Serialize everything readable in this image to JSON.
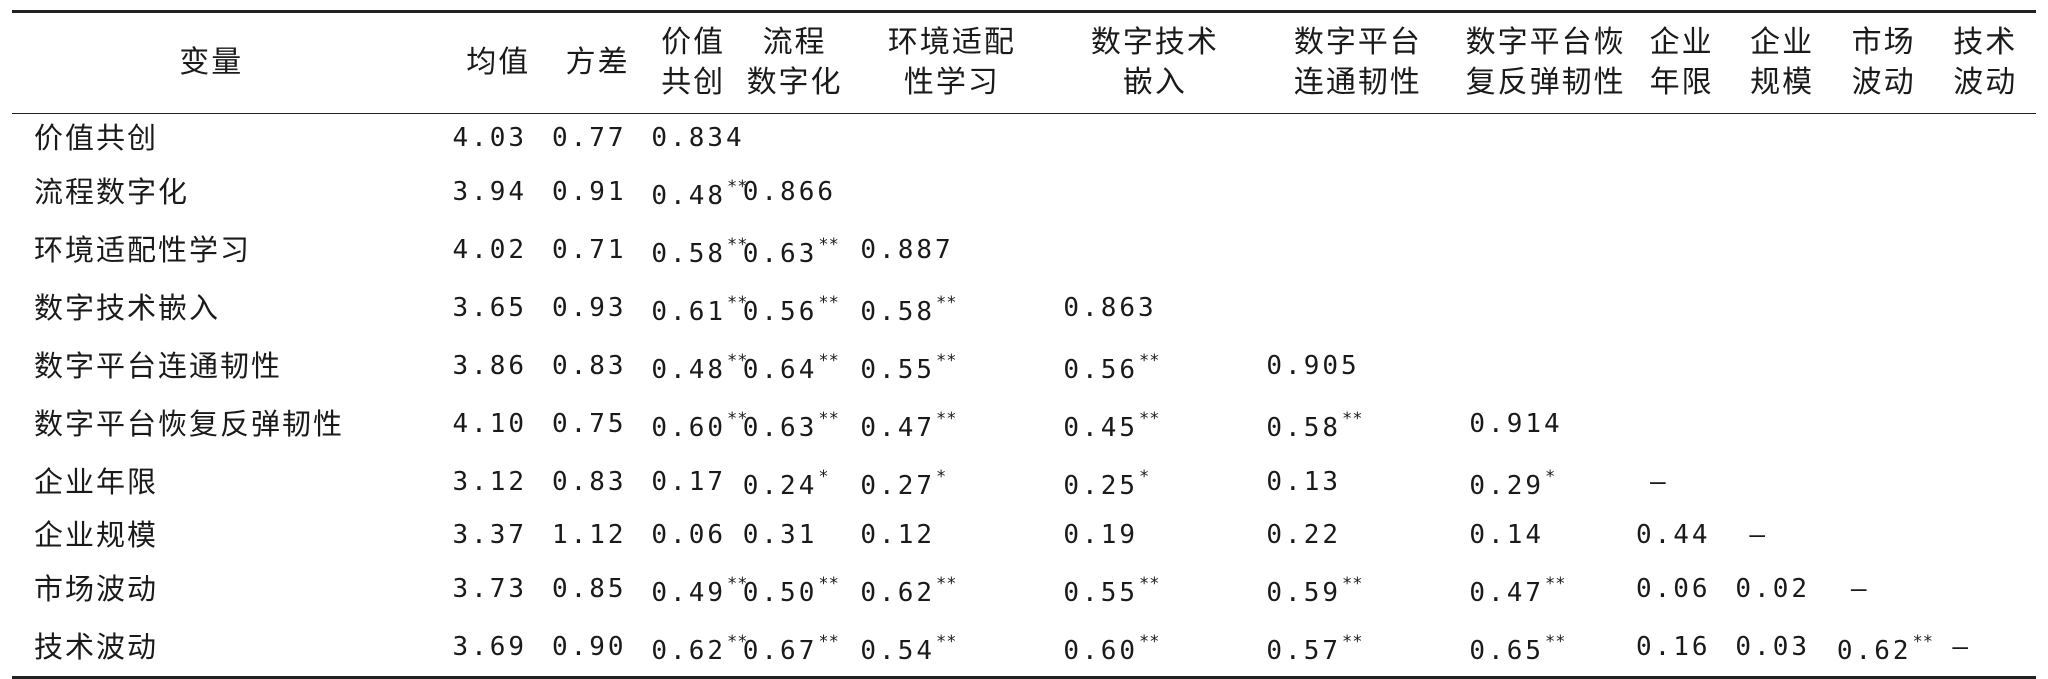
{
  "table": {
    "headers": [
      {
        "lines": [
          "变量"
        ]
      },
      {
        "lines": [
          "均值"
        ]
      },
      {
        "lines": [
          "方差"
        ]
      },
      {
        "lines": [
          "价值",
          "共创"
        ]
      },
      {
        "lines": [
          "流程",
          "数字化"
        ]
      },
      {
        "lines": [
          "环境适配",
          "性学习"
        ]
      },
      {
        "lines": [
          "数字技术",
          "嵌入"
        ]
      },
      {
        "lines": [
          "数字平台",
          "连通韧性"
        ]
      },
      {
        "lines": [
          "数字平台恢",
          "复反弹韧性"
        ]
      },
      {
        "lines": [
          "企业",
          "年限"
        ]
      },
      {
        "lines": [
          "企业",
          "规模"
        ]
      },
      {
        "lines": [
          "市场",
          "波动"
        ]
      },
      {
        "lines": [
          "技术",
          "波动"
        ]
      }
    ],
    "rows": [
      {
        "name": "价值共创",
        "mean": "4.03",
        "variance": "0.77",
        "cells": [
          {
            "v": "0.834",
            "sig": ""
          }
        ]
      },
      {
        "name": "流程数字化",
        "mean": "3.94",
        "variance": "0.91",
        "cells": [
          {
            "v": "0.48",
            "sig": "**"
          },
          {
            "v": "0.866",
            "sig": ""
          }
        ]
      },
      {
        "name": "环境适配性学习",
        "mean": "4.02",
        "variance": "0.71",
        "cells": [
          {
            "v": "0.58",
            "sig": "**"
          },
          {
            "v": "0.63",
            "sig": "**"
          },
          {
            "v": "0.887",
            "sig": ""
          }
        ]
      },
      {
        "name": "数字技术嵌入",
        "mean": "3.65",
        "variance": "0.93",
        "cells": [
          {
            "v": "0.61",
            "sig": "**"
          },
          {
            "v": "0.56",
            "sig": "**"
          },
          {
            "v": "0.58",
            "sig": "**"
          },
          {
            "v": "0.863",
            "sig": ""
          }
        ]
      },
      {
        "name": "数字平台连通韧性",
        "mean": "3.86",
        "variance": "0.83",
        "cells": [
          {
            "v": "0.48",
            "sig": "**"
          },
          {
            "v": "0.64",
            "sig": "**"
          },
          {
            "v": "0.55",
            "sig": "**"
          },
          {
            "v": "0.56",
            "sig": "**"
          },
          {
            "v": "0.905",
            "sig": ""
          }
        ]
      },
      {
        "name": "数字平台恢复反弹韧性",
        "mean": "4.10",
        "variance": "0.75",
        "cells": [
          {
            "v": "0.60",
            "sig": "**"
          },
          {
            "v": "0.63",
            "sig": "**"
          },
          {
            "v": "0.47",
            "sig": "**"
          },
          {
            "v": "0.45",
            "sig": "**"
          },
          {
            "v": "0.58",
            "sig": "**"
          },
          {
            "v": "0.914",
            "sig": ""
          }
        ]
      },
      {
        "name": "企业年限",
        "mean": "3.12",
        "variance": "0.83",
        "cells": [
          {
            "v": "0.17",
            "sig": ""
          },
          {
            "v": "0.24",
            "sig": "*"
          },
          {
            "v": "0.27",
            "sig": "*"
          },
          {
            "v": "0.25",
            "sig": "*"
          },
          {
            "v": "0.13",
            "sig": ""
          },
          {
            "v": "0.29",
            "sig": "*"
          },
          {
            "v": "—",
            "sig": ""
          }
        ]
      },
      {
        "name": "企业规模",
        "mean": "3.37",
        "variance": "1.12",
        "cells": [
          {
            "v": "0.06",
            "sig": ""
          },
          {
            "v": "0.31",
            "sig": ""
          },
          {
            "v": "0.12",
            "sig": ""
          },
          {
            "v": "0.19",
            "sig": ""
          },
          {
            "v": "0.22",
            "sig": ""
          },
          {
            "v": "0.14",
            "sig": ""
          },
          {
            "v": "0.44",
            "sig": ""
          },
          {
            "v": "—",
            "sig": ""
          }
        ]
      },
      {
        "name": "市场波动",
        "mean": "3.73",
        "variance": "0.85",
        "cells": [
          {
            "v": "0.49",
            "sig": "**"
          },
          {
            "v": "0.50",
            "sig": "**"
          },
          {
            "v": "0.62",
            "sig": "**"
          },
          {
            "v": "0.55",
            "sig": "**"
          },
          {
            "v": "0.59",
            "sig": "**"
          },
          {
            "v": "0.47",
            "sig": "**"
          },
          {
            "v": "0.06",
            "sig": ""
          },
          {
            "v": "0.02",
            "sig": ""
          },
          {
            "v": "—",
            "sig": ""
          }
        ]
      },
      {
        "name": "技术波动",
        "mean": "3.69",
        "variance": "0.90",
        "cells": [
          {
            "v": "0.62",
            "sig": "**"
          },
          {
            "v": "0.67",
            "sig": "**"
          },
          {
            "v": "0.54",
            "sig": "**"
          },
          {
            "v": "0.60",
            "sig": "**"
          },
          {
            "v": "0.57",
            "sig": "**"
          },
          {
            "v": "0.65",
            "sig": "**"
          },
          {
            "v": "0.16",
            "sig": ""
          },
          {
            "v": "0.03",
            "sig": ""
          },
          {
            "v": "0.62",
            "sig": "**"
          },
          {
            "v": "—",
            "sig": ""
          }
        ]
      }
    ]
  }
}
